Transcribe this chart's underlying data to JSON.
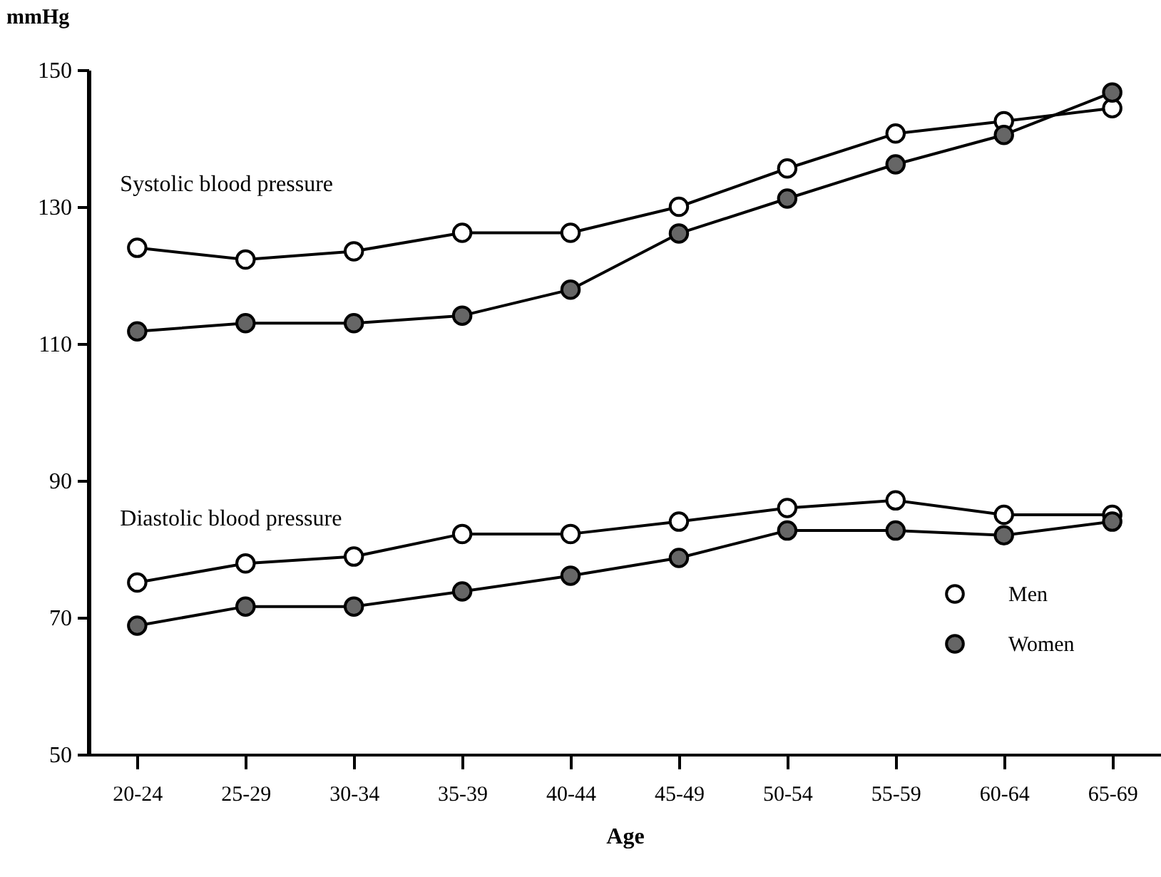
{
  "chart_data": {
    "type": "line",
    "xlabel": "Age",
    "ylabel": "mmHg",
    "categories": [
      "20-24",
      "25-29",
      "30-34",
      "35-39",
      "40-44",
      "45-49",
      "50-54",
      "55-59",
      "60-64",
      "65-69"
    ],
    "series": [
      {
        "name": "Men",
        "color": "#ffffff",
        "values": [
          124.0,
          122.3,
          123.5,
          126.2,
          126.2,
          130.0,
          135.6,
          140.7,
          142.5,
          144.4
        ]
      },
      {
        "name": "Women",
        "color": "#666666",
        "values": [
          111.8,
          113.0,
          113.0,
          114.1,
          117.9,
          126.1,
          131.2,
          136.2,
          140.5,
          146.7
        ]
      },
      {
        "color": "#ffffff",
        "values": [
          75.1,
          77.9,
          78.9,
          82.2,
          82.2,
          84.0,
          86.0,
          87.1,
          85.0,
          85.0
        ]
      },
      {
        "color": "#666666",
        "values": [
          68.8,
          71.6,
          71.6,
          73.8,
          76.1,
          78.7,
          82.7,
          82.7,
          82.0,
          84.0
        ]
      }
    ],
    "annotations": [
      "Systolic blood pressure",
      "Diastolic blood pressure"
    ],
    "ylim": [
      50,
      150
    ],
    "yticks": [
      50,
      70,
      90,
      110,
      130,
      150
    ],
    "grid": false,
    "legend": "bottom right",
    "marker": "circle",
    "line_style": "solid"
  }
}
